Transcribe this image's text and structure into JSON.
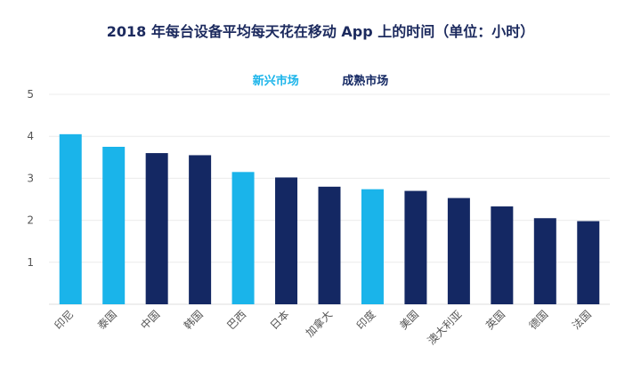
{
  "chart_data": {
    "type": "bar",
    "title": "2018 年每台设备平均每天花在移动 App 上的时间（单位：小时）",
    "categories": [
      "印尼",
      "泰国",
      "中国",
      "韩国",
      "巴西",
      "日本",
      "加拿大",
      "印度",
      "美国",
      "澳大利亚",
      "英国",
      "德国",
      "法国"
    ],
    "values": [
      4.05,
      3.75,
      3.6,
      3.55,
      3.15,
      3.02,
      2.8,
      2.74,
      2.7,
      2.53,
      2.33,
      2.05,
      1.98
    ],
    "groups": [
      "新兴市场",
      "新兴市场",
      "成熟市场",
      "成熟市场",
      "新兴市场",
      "成熟市场",
      "成熟市场",
      "新兴市场",
      "成熟市场",
      "成熟市场",
      "成熟市场",
      "成熟市场",
      "成熟市场"
    ],
    "legend": [
      {
        "name": "新兴市场",
        "color": "#1ab4ea"
      },
      {
        "name": "成熟市场",
        "color": "#142863"
      }
    ],
    "yticks": [
      "1",
      "2",
      "3",
      "4",
      "5"
    ],
    "ylim": [
      0,
      5
    ],
    "grid": true,
    "legend_position": "top-center"
  },
  "colors": {
    "emerging": "#1ab4ea",
    "mature": "#142863",
    "title": "#1c2a5e"
  }
}
